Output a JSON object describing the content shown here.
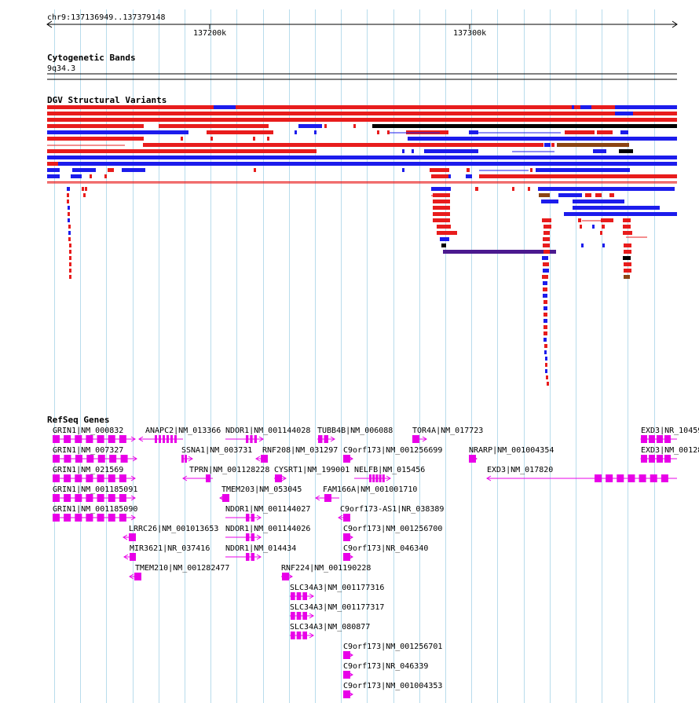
{
  "browser": {
    "location": "chr9:137136949..137379148",
    "ruler_ticks": [
      {
        "label": "137200k",
        "pos": 137200000
      },
      {
        "label": "137300k",
        "pos": 137300000
      }
    ],
    "range_start": 137136949,
    "range_end": 137379148
  },
  "tracks": {
    "cytoband": {
      "title": "Cytogenetic Bands",
      "band": "9q34.3"
    },
    "dgv": {
      "title": "DGV Structural Variants",
      "variant_colors": {
        "gain": "#e81c1c",
        "loss": "#1c1cec",
        "gain_loss": "#8b4513",
        "complex": "#000000",
        "inversion": "#4b1a8f"
      }
    },
    "refseq": {
      "title": "RefSeq Genes",
      "gene_color": "#e800e8",
      "genes": [
        "GRIN1|NM_000832",
        "GRIN1|NM_007327",
        "GRIN1|NM_021569",
        "GRIN1|NM_001185091",
        "GRIN1|NM_001185090",
        "ANAPC2|NM_013366",
        "SSNA1|NM_003731",
        "TPRN|NM_001128228",
        "LRRC26|NM_001013653",
        "MIR3621|NR_037416",
        "TMEM210|NM_001282477",
        "NDOR1|NM_001144028",
        "TMEM203|NM_053045",
        "NDOR1|NM_001144027",
        "NDOR1|NM_001144026",
        "NDOR1|NM_014434",
        "RNF208|NM_031297",
        "CYSRT1|NM_199001",
        "RNF224|NM_001190228",
        "SLC34A3|NM_001177316",
        "SLC34A3|NM_001177317",
        "SLC34A3|NM_080877",
        "TUBB4B|NM_006088",
        "C9orf173|NM_001256699",
        "NELFB|NM_015456",
        "FAM166A|NM_001001710",
        "C9orf173-AS1|NR_038389",
        "C9orf173|NM_001256700",
        "C9orf173|NR_046340",
        "C9orf173|NM_001256701",
        "C9orf173|NR_046339",
        "C9orf173|NM_001004353",
        "TOR4A|NM_017723",
        "NRARP|NM_001004354",
        "EXD3|NM_017820",
        "EXD3|NR_10459",
        "EXD3|NM_00128"
      ]
    }
  }
}
